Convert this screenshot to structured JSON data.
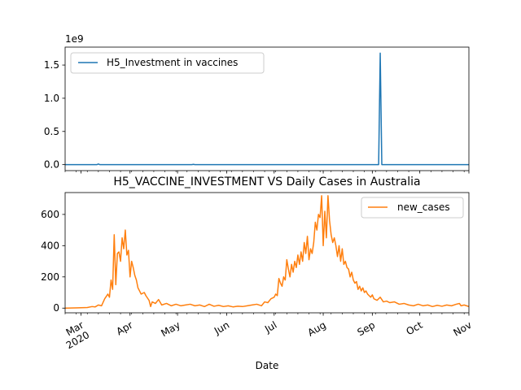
{
  "figure": {
    "xlabel": "Date"
  },
  "chart_data": [
    {
      "type": "line",
      "title": "",
      "xlabel": "",
      "ylabel": "",
      "offset_label": "1e9",
      "xlim": [
        "2020-02-20",
        "2020-11-01"
      ],
      "ylim": [
        -0.09,
        1.77
      ],
      "yticks": [
        0.0,
        0.5,
        1.0,
        1.5
      ],
      "ytick_labels": [
        "0.0",
        "0.5",
        "1.0",
        "1.5"
      ],
      "grid": false,
      "legend": "top-left",
      "series": [
        {
          "name": "H5_Investment in vaccines",
          "color": "#1f77b4",
          "points": [
            [
              "2020-02-20",
              0
            ],
            [
              "2020-03-11",
              0
            ],
            [
              "2020-03-12",
              0.01
            ],
            [
              "2020-03-13",
              0
            ],
            [
              "2020-05-10",
              0
            ],
            [
              "2020-05-11",
              0.005
            ],
            [
              "2020-05-12",
              0
            ],
            [
              "2020-09-05",
              0
            ],
            [
              "2020-09-06",
              1.68
            ],
            [
              "2020-09-07",
              0
            ],
            [
              "2020-11-01",
              0
            ]
          ]
        }
      ]
    },
    {
      "type": "line",
      "title": "H5_VACCINE_INVESTMENT VS Daily Cases in Australia",
      "xlabel": "Date",
      "ylabel": "",
      "xlim": [
        "2020-02-20",
        "2020-11-01"
      ],
      "ylim": [
        -30,
        740
      ],
      "yticks": [
        0,
        200,
        400,
        600
      ],
      "ytick_labels": [
        "0",
        "200",
        "400",
        "600"
      ],
      "xticks": [
        "2020-03-01",
        "2020-04-01",
        "2020-05-01",
        "2020-06-01",
        "2020-07-01",
        "2020-08-01",
        "2020-09-01",
        "2020-10-01",
        "2020-11-01"
      ],
      "xtick_labels": [
        "Mar\n2020",
        "Apr",
        "May",
        "Jun",
        "Jul",
        "Aug",
        "Sep",
        "Oct",
        "Nov"
      ],
      "grid": false,
      "legend": "top-right",
      "series": [
        {
          "name": "new_cases",
          "color": "#ff7f0e",
          "points": [
            [
              "2020-02-20",
              0
            ],
            [
              "2020-02-28",
              2
            ],
            [
              "2020-03-05",
              4
            ],
            [
              "2020-03-08",
              10
            ],
            [
              "2020-03-10",
              8
            ],
            [
              "2020-03-12",
              20
            ],
            [
              "2020-03-14",
              15
            ],
            [
              "2020-03-16",
              60
            ],
            [
              "2020-03-18",
              90
            ],
            [
              "2020-03-19",
              70
            ],
            [
              "2020-03-20",
              180
            ],
            [
              "2020-03-21",
              120
            ],
            [
              "2020-03-22",
              470
            ],
            [
              "2020-03-23",
              150
            ],
            [
              "2020-03-24",
              350
            ],
            [
              "2020-03-25",
              360
            ],
            [
              "2020-03-26",
              300
            ],
            [
              "2020-03-27",
              450
            ],
            [
              "2020-03-28",
              380
            ],
            [
              "2020-03-29",
              500
            ],
            [
              "2020-03-30",
              340
            ],
            [
              "2020-03-31",
              370
            ],
            [
              "2020-04-01",
              200
            ],
            [
              "2020-04-02",
              300
            ],
            [
              "2020-04-03",
              260
            ],
            [
              "2020-04-04",
              210
            ],
            [
              "2020-04-05",
              180
            ],
            [
              "2020-04-06",
              130
            ],
            [
              "2020-04-07",
              110
            ],
            [
              "2020-04-08",
              90
            ],
            [
              "2020-04-10",
              100
            ],
            [
              "2020-04-11",
              80
            ],
            [
              "2020-04-13",
              50
            ],
            [
              "2020-04-14",
              10
            ],
            [
              "2020-04-15",
              40
            ],
            [
              "2020-04-17",
              30
            ],
            [
              "2020-04-19",
              55
            ],
            [
              "2020-04-21",
              20
            ],
            [
              "2020-04-24",
              30
            ],
            [
              "2020-04-27",
              15
            ],
            [
              "2020-04-30",
              25
            ],
            [
              "2020-05-03",
              15
            ],
            [
              "2020-05-06",
              20
            ],
            [
              "2020-05-09",
              25
            ],
            [
              "2020-05-12",
              15
            ],
            [
              "2020-05-15",
              20
            ],
            [
              "2020-05-18",
              10
            ],
            [
              "2020-05-21",
              25
            ],
            [
              "2020-05-24",
              12
            ],
            [
              "2020-05-27",
              18
            ],
            [
              "2020-05-30",
              10
            ],
            [
              "2020-06-02",
              15
            ],
            [
              "2020-06-05",
              8
            ],
            [
              "2020-06-08",
              12
            ],
            [
              "2020-06-11",
              10
            ],
            [
              "2020-06-14",
              15
            ],
            [
              "2020-06-17",
              20
            ],
            [
              "2020-06-20",
              25
            ],
            [
              "2020-06-23",
              15
            ],
            [
              "2020-06-25",
              40
            ],
            [
              "2020-06-27",
              35
            ],
            [
              "2020-06-29",
              60
            ],
            [
              "2020-07-01",
              70
            ],
            [
              "2020-07-02",
              90
            ],
            [
              "2020-07-03",
              80
            ],
            [
              "2020-07-04",
              190
            ],
            [
              "2020-07-05",
              160
            ],
            [
              "2020-07-06",
              140
            ],
            [
              "2020-07-07",
              200
            ],
            [
              "2020-07-08",
              180
            ],
            [
              "2020-07-09",
              310
            ],
            [
              "2020-07-10",
              250
            ],
            [
              "2020-07-11",
              200
            ],
            [
              "2020-07-12",
              280
            ],
            [
              "2020-07-13",
              230
            ],
            [
              "2020-07-14",
              300
            ],
            [
              "2020-07-15",
              260
            ],
            [
              "2020-07-16",
              340
            ],
            [
              "2020-07-17",
              280
            ],
            [
              "2020-07-18",
              360
            ],
            [
              "2020-07-19",
              300
            ],
            [
              "2020-07-20",
              420
            ],
            [
              "2020-07-21",
              350
            ],
            [
              "2020-07-22",
              460
            ],
            [
              "2020-07-23",
              310
            ],
            [
              "2020-07-24",
              380
            ],
            [
              "2020-07-25",
              350
            ],
            [
              "2020-07-26",
              420
            ],
            [
              "2020-07-27",
              550
            ],
            [
              "2020-07-28",
              500
            ],
            [
              "2020-07-29",
              600
            ],
            [
              "2020-07-30",
              580
            ],
            [
              "2020-07-31",
              720
            ],
            [
              "2020-08-01",
              400
            ],
            [
              "2020-08-02",
              620
            ],
            [
              "2020-08-03",
              450
            ],
            [
              "2020-08-04",
              720
            ],
            [
              "2020-08-05",
              560
            ],
            [
              "2020-08-06",
              470
            ],
            [
              "2020-08-07",
              420
            ],
            [
              "2020-08-08",
              450
            ],
            [
              "2020-08-09",
              400
            ],
            [
              "2020-08-10",
              330
            ],
            [
              "2020-08-11",
              400
            ],
            [
              "2020-08-12",
              300
            ],
            [
              "2020-08-13",
              380
            ],
            [
              "2020-08-14",
              280
            ],
            [
              "2020-08-15",
              300
            ],
            [
              "2020-08-16",
              260
            ],
            [
              "2020-08-17",
              250
            ],
            [
              "2020-08-18",
              200
            ],
            [
              "2020-08-19",
              230
            ],
            [
              "2020-08-20",
              180
            ],
            [
              "2020-08-21",
              160
            ],
            [
              "2020-08-22",
              170
            ],
            [
              "2020-08-23",
              120
            ],
            [
              "2020-08-24",
              140
            ],
            [
              "2020-08-25",
              110
            ],
            [
              "2020-08-26",
              130
            ],
            [
              "2020-08-27",
              100
            ],
            [
              "2020-08-28",
              110
            ],
            [
              "2020-08-29",
              90
            ],
            [
              "2020-08-30",
              80
            ],
            [
              "2020-08-31",
              70
            ],
            [
              "2020-09-01",
              85
            ],
            [
              "2020-09-02",
              60
            ],
            [
              "2020-09-04",
              50
            ],
            [
              "2020-09-06",
              70
            ],
            [
              "2020-09-08",
              40
            ],
            [
              "2020-09-10",
              45
            ],
            [
              "2020-09-12",
              35
            ],
            [
              "2020-09-15",
              40
            ],
            [
              "2020-09-18",
              25
            ],
            [
              "2020-09-21",
              30
            ],
            [
              "2020-09-24",
              20
            ],
            [
              "2020-09-27",
              15
            ],
            [
              "2020-09-30",
              25
            ],
            [
              "2020-10-03",
              15
            ],
            [
              "2020-10-06",
              20
            ],
            [
              "2020-10-09",
              10
            ],
            [
              "2020-10-12",
              18
            ],
            [
              "2020-10-15",
              12
            ],
            [
              "2020-10-18",
              20
            ],
            [
              "2020-10-21",
              15
            ],
            [
              "2020-10-24",
              25
            ],
            [
              "2020-10-26",
              30
            ],
            [
              "2020-10-27",
              15
            ],
            [
              "2020-10-29",
              20
            ],
            [
              "2020-11-01",
              10
            ]
          ]
        }
      ]
    }
  ]
}
